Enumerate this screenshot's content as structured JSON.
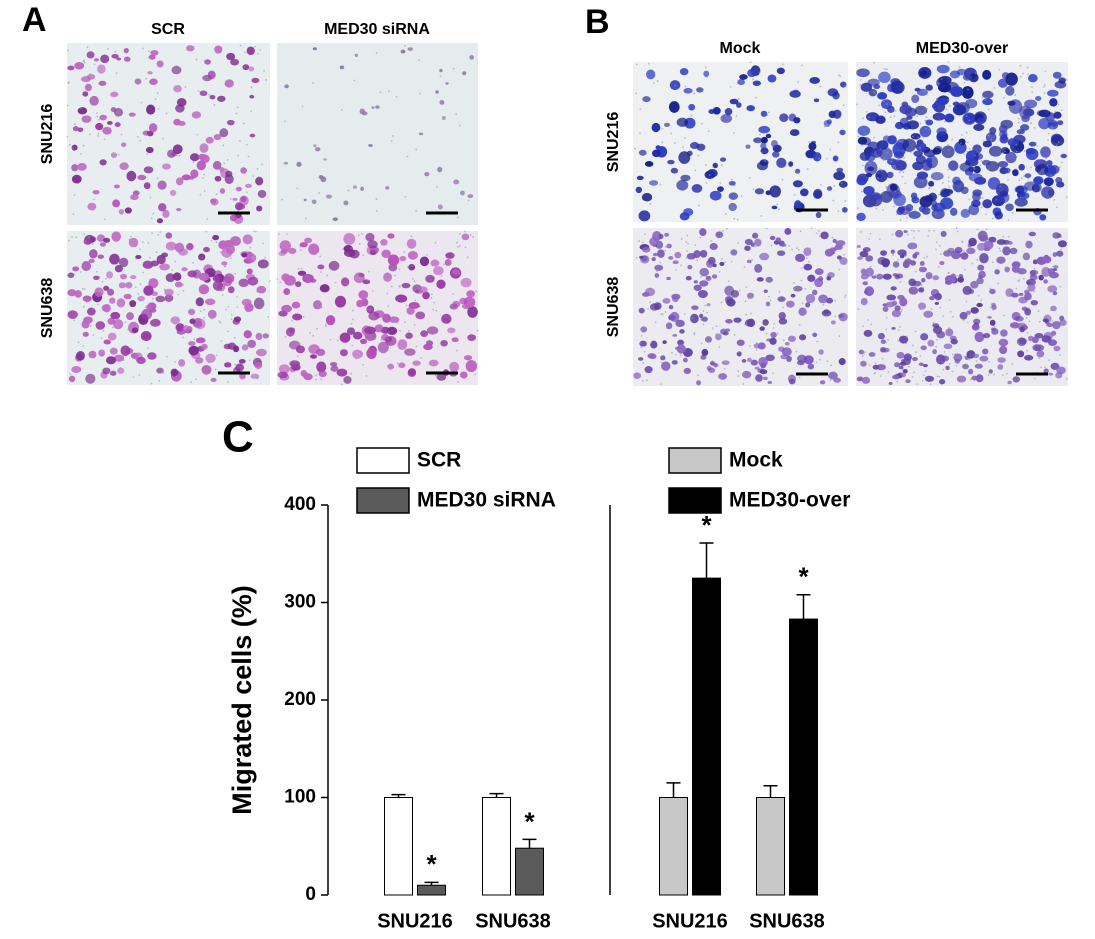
{
  "panels": {
    "a": {
      "letter": "A",
      "columns": [
        "SCR",
        "MED30 siRNA"
      ],
      "rows": [
        "SNU216",
        "SNU638"
      ]
    },
    "b": {
      "letter": "B",
      "columns": [
        "Mock",
        "MED30-over"
      ],
      "rows": [
        "SNU216",
        "SNU638"
      ]
    }
  },
  "chart_data": {
    "type": "bar",
    "panel_letter": "C",
    "y_label": "Migrated cells (%)",
    "categories": [
      "SNU216",
      "SNU638",
      "SNU216",
      "SNU638"
    ],
    "series": [
      {
        "name": "SCR",
        "color": "#ffffff",
        "values": [
          100,
          100,
          null,
          null
        ],
        "errors": [
          3,
          4,
          null,
          null
        ]
      },
      {
        "name": "MED30 siRNA",
        "color": "#5a5a5a",
        "values": [
          10,
          48,
          null,
          null
        ],
        "errors": [
          3,
          9,
          null,
          null
        ],
        "significance": [
          "*",
          "*",
          null,
          null
        ]
      },
      {
        "name": "Mock",
        "color": "#c8c8c8",
        "values": [
          null,
          null,
          100,
          100
        ],
        "errors": [
          null,
          null,
          15,
          12
        ]
      },
      {
        "name": "MED30-over",
        "color": "#000000",
        "values": [
          null,
          null,
          325,
          283
        ],
        "errors": [
          null,
          null,
          36,
          25
        ],
        "significance": [
          null,
          null,
          "*",
          "*"
        ]
      }
    ],
    "ylim": [
      0,
      400
    ],
    "yticks": [
      0,
      100,
      200,
      300,
      400
    ]
  }
}
